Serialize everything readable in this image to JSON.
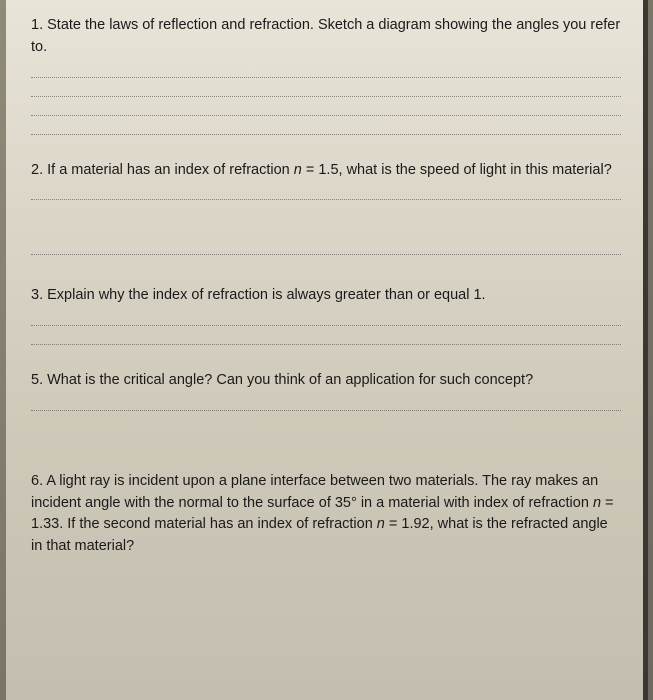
{
  "questions": {
    "q1": {
      "number": "1.",
      "text_part1": "State the laws of reflection and refraction. Sketch a diagram showing the angles you refer to.",
      "num_lines": 4
    },
    "q2": {
      "number": "2.",
      "text_part1": "If a material has an index of refraction ",
      "text_italic1": "n",
      "text_part2": " = 1.5, what is the speed of light in this material?",
      "num_lines": 2
    },
    "q3": {
      "number": "3.",
      "text_part1": "Explain why the index of refraction is always greater than or equal 1.",
      "num_lines": 2
    },
    "q5": {
      "number": "5.",
      "text_part1": "What is the critical angle? Can you think of an application for such concept?",
      "num_lines": 1
    },
    "q6": {
      "number": "6.",
      "text_part1": "A light ray is incident upon a plane interface between two materials. The ray makes an incident angle with the normal to the surface of 35° in a material with index of refraction ",
      "text_italic1": "n",
      "text_part2": " = 1.33. If the second material has an index of refraction ",
      "text_italic2": "n",
      "text_part3": " = 1.92, what is the refracted angle in that material?"
    }
  },
  "styling": {
    "page_bg_start": "#e8e4d8",
    "page_bg_end": "#c4beb0",
    "text_color": "#1a1a1a",
    "dotted_line_color": "#4a4a4a",
    "font_size_pt": 14.5,
    "line_height": 1.5
  }
}
